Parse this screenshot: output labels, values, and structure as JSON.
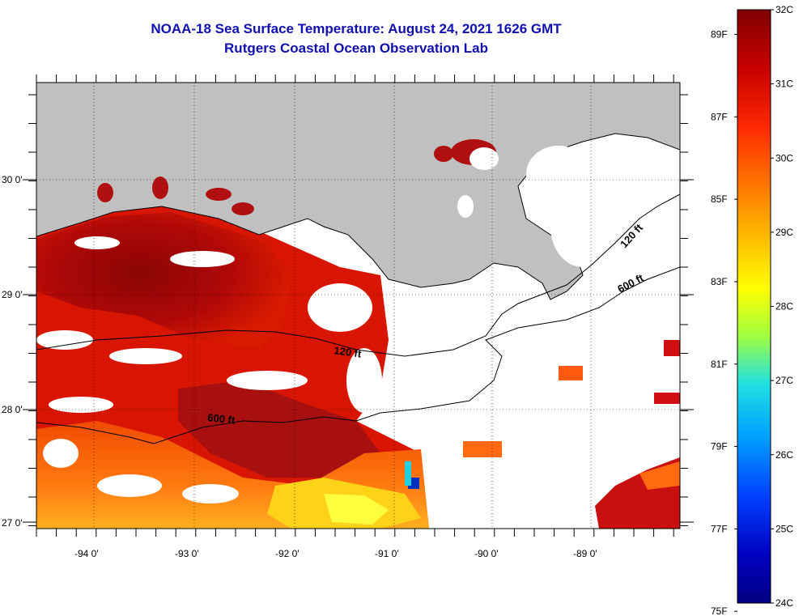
{
  "header": {
    "title": "NOAA-18 Sea Surface Temperature:  August 24, 2021 1626 GMT",
    "subtitle": "Rutgers Coastal Ocean Observation Lab"
  },
  "axes": {
    "lat_labels": [
      "30 0'",
      "29 0'",
      "28 0'",
      "27 0'"
    ],
    "lon_labels": [
      "-94 0'",
      "-93 0'",
      "-92 0'",
      "-91 0'",
      "-90 0'",
      "-89 0'"
    ]
  },
  "contours": {
    "shelf_120": "120 ft",
    "shelf_600_west": "600 ft",
    "shelf_120_east": "120 ft",
    "shelf_600_east": "600 ft"
  },
  "colorbar": {
    "fahrenheit": [
      "89F",
      "87F",
      "85F",
      "83F",
      "81F",
      "79F",
      "77F",
      "75F"
    ],
    "celsius": [
      "32C",
      "31C",
      "30C",
      "29C",
      "28C",
      "27C",
      "26C",
      "25C",
      "24C"
    ],
    "colors": [
      "#800000",
      "#c80000",
      "#ff2a00",
      "#ff7a00",
      "#ffc800",
      "#ffff00",
      "#a0ff40",
      "#20e0e0",
      "#00a0ff",
      "#0040ff",
      "#0000c0",
      "#000080"
    ]
  },
  "colors": {
    "land": "#c0c0c0",
    "title": "#1010b0"
  }
}
